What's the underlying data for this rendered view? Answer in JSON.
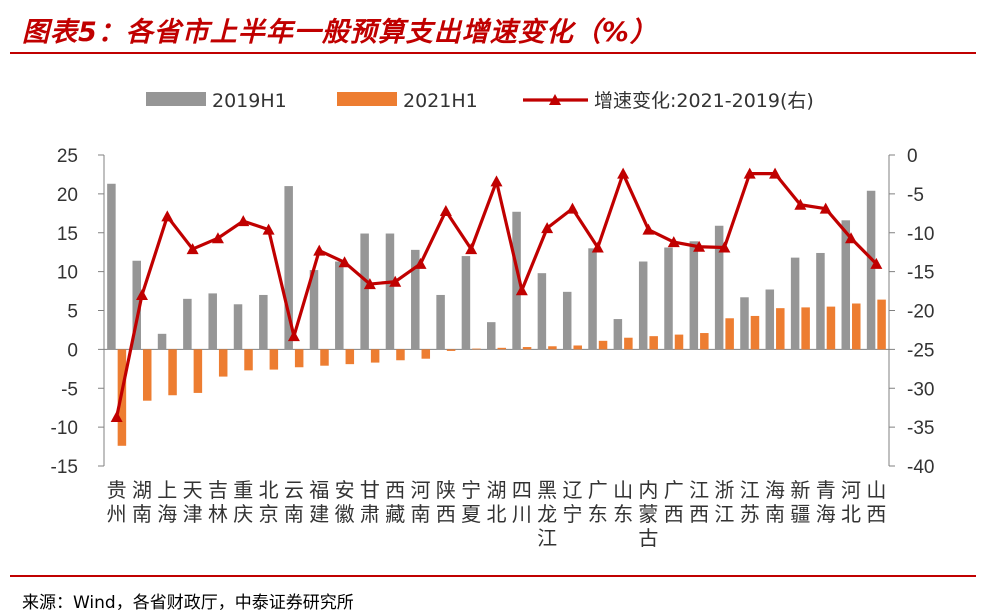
{
  "title": "图表5：各省市上半年一般预算支出增速变化（%）",
  "source": "来源：Wind，各省财政厅，中泰证券研究所",
  "chart_data": {
    "type": "bar+line",
    "title": "图表5：各省市上半年一般预算支出增速变化（%）",
    "categories": [
      "贵州",
      "湖南",
      "上海",
      "天津",
      "吉林",
      "重庆",
      "北京",
      "云南",
      "福建",
      "安徽",
      "甘肃",
      "西藏",
      "河南",
      "陕西",
      "宁夏",
      "湖北",
      "四川",
      "黑龙江",
      "辽宁",
      "广东",
      "山东",
      "内蒙古",
      "广西",
      "江西",
      "浙江",
      "江苏",
      "海南",
      "新疆",
      "青海",
      "河北",
      "山西"
    ],
    "series": [
      {
        "name": "2019H1",
        "type": "bar",
        "axis": "left",
        "color": "#969696",
        "values": [
          21.3,
          11.4,
          2.0,
          6.5,
          7.2,
          5.8,
          7.0,
          21.0,
          10.2,
          11.3,
          14.9,
          14.9,
          12.8,
          7.0,
          12.0,
          3.5,
          17.7,
          9.8,
          7.4,
          13.0,
          3.9,
          11.3,
          13.1,
          13.9,
          15.9,
          6.7,
          7.7,
          11.8,
          12.4,
          16.6,
          20.4
        ]
      },
      {
        "name": "2021H1",
        "type": "bar",
        "axis": "left",
        "color": "#ed7d31",
        "values": [
          -12.4,
          -6.6,
          -5.9,
          -5.6,
          -3.5,
          -2.7,
          -2.6,
          -2.3,
          -2.1,
          -1.9,
          -1.7,
          -1.4,
          -1.2,
          -0.2,
          0.1,
          0.2,
          0.3,
          0.4,
          0.5,
          1.1,
          1.5,
          1.7,
          1.9,
          2.1,
          4.0,
          4.3,
          5.3,
          5.4,
          5.5,
          5.9,
          6.4
        ]
      },
      {
        "name": "增速变化:2021-2019(右)",
        "type": "line",
        "axis": "right",
        "color": "#c00000",
        "values": [
          -33.7,
          -18.0,
          -7.9,
          -12.1,
          -10.7,
          -8.5,
          -9.6,
          -23.3,
          -12.3,
          -13.8,
          -16.6,
          -16.3,
          -14.0,
          -7.2,
          -12.1,
          -3.4,
          -17.4,
          -9.4,
          -6.9,
          -11.9,
          -2.4,
          -9.6,
          -11.2,
          -11.8,
          -11.9,
          -2.4,
          -2.4,
          -6.4,
          -6.9,
          -10.7,
          -14.0
        ]
      }
    ],
    "left_axis": {
      "ylim": [
        -15,
        25
      ],
      "ticks": [
        -15,
        -10,
        -5,
        0,
        5,
        10,
        15,
        20,
        25
      ]
    },
    "right_axis": {
      "ylim": [
        -40,
        0
      ],
      "ticks": [
        -40,
        -35,
        -30,
        -25,
        -20,
        -15,
        -10,
        -5,
        0
      ]
    },
    "legend_position": "top-center"
  }
}
